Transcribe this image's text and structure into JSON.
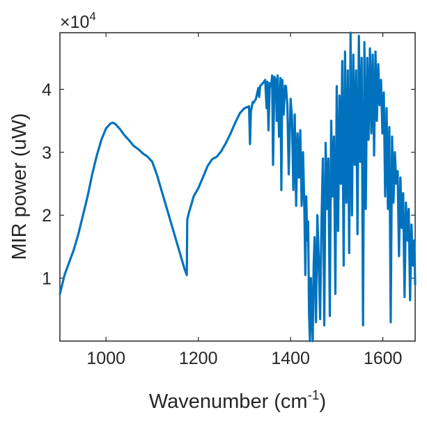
{
  "chart_data": {
    "type": "line",
    "title": "",
    "xlabel": "Wavenumber",
    "xlabel_unit_prefix": "(cm",
    "xlabel_unit_exp": "-1",
    "xlabel_unit_suffix": ")",
    "ylabel": "MIR power (uW)",
    "xlim": [
      900,
      1670
    ],
    "ylim": [
      0,
      49000
    ],
    "x_ticks": [
      1000,
      1200,
      1400,
      1600
    ],
    "x_tick_labels": [
      "1000",
      "1200",
      "1400",
      "1600"
    ],
    "y_ticks": [
      10000,
      20000,
      30000,
      40000
    ],
    "y_tick_labels": [
      "1",
      "2",
      "3",
      "4"
    ],
    "y_multiplier_sign": "×10",
    "y_multiplier_exp": "4",
    "series_color": "#0072BD",
    "series": [
      {
        "name": "MIR power",
        "x": [
          900,
          910,
          920,
          930,
          940,
          950,
          960,
          970,
          980,
          990,
          1000,
          1010,
          1015,
          1020,
          1030,
          1040,
          1050,
          1060,
          1070,
          1080,
          1090,
          1100,
          1110,
          1120,
          1130,
          1140,
          1150,
          1160,
          1170,
          1175,
          1176,
          1180,
          1190,
          1200,
          1210,
          1220,
          1230,
          1240,
          1250,
          1260,
          1270,
          1280,
          1290,
          1300,
          1310,
          1312,
          1314,
          1318,
          1320,
          1325,
          1330,
          1332,
          1334,
          1340,
          1345,
          1348,
          1350,
          1352,
          1355,
          1358,
          1360,
          1362,
          1365,
          1368,
          1370,
          1372,
          1375,
          1378,
          1380,
          1382,
          1385,
          1388,
          1390,
          1393,
          1396,
          1400,
          1403,
          1406,
          1409,
          1412,
          1415,
          1418,
          1421,
          1424,
          1427,
          1430,
          1432,
          1434,
          1436,
          1438,
          1440,
          1442,
          1444,
          1446,
          1448,
          1450,
          1452,
          1455,
          1458,
          1461,
          1464,
          1467,
          1470,
          1473,
          1476,
          1479,
          1482,
          1485,
          1488,
          1491,
          1494,
          1497,
          1500,
          1503,
          1506,
          1509,
          1512,
          1515,
          1518,
          1521,
          1524,
          1527,
          1530,
          1533,
          1536,
          1539,
          1542,
          1545,
          1548,
          1551,
          1554,
          1557,
          1560,
          1563,
          1566,
          1569,
          1572,
          1575,
          1578,
          1581,
          1584,
          1587,
          1590,
          1593,
          1596,
          1599,
          1602,
          1605,
          1608,
          1611,
          1614,
          1617,
          1620,
          1623,
          1626,
          1629,
          1632,
          1635,
          1638,
          1641,
          1644,
          1647,
          1650,
          1653,
          1656,
          1659,
          1662,
          1665,
          1668,
          1670
        ],
        "y": [
          7500,
          10500,
          12500,
          14500,
          17000,
          20000,
          23000,
          26500,
          29500,
          32000,
          33800,
          34600,
          34700,
          34500,
          33700,
          32700,
          31900,
          31000,
          30500,
          29800,
          29300,
          28500,
          26500,
          24000,
          21500,
          19000,
          16500,
          14000,
          11500,
          10500,
          19300,
          20500,
          23000,
          24300,
          26000,
          27800,
          28900,
          29300,
          30200,
          31500,
          33000,
          34700,
          36200,
          37000,
          37300,
          31300,
          36500,
          38000,
          37900,
          38500,
          40200,
          38800,
          40500,
          41000,
          41500,
          37000,
          41200,
          33500,
          41000,
          40500,
          42200,
          28000,
          42000,
          41500,
          35000,
          42200,
          32500,
          41800,
          24000,
          41500,
          36000,
          40600,
          40500,
          37500,
          26500,
          38500,
          35500,
          24000,
          36000,
          21500,
          33000,
          26000,
          33500,
          21500,
          30000,
          20500,
          10500,
          23000,
          16000,
          19000,
          4500,
          0,
          10000,
          4500,
          0,
          12000,
          16500,
          3000,
          20000,
          13000,
          3500,
          19000,
          29000,
          2500,
          31500,
          21000,
          29000,
          4000,
          35000,
          23000,
          32500,
          7500,
          40500,
          17500,
          39000,
          25000,
          44500,
          12000,
          46000,
          22000,
          43000,
          14000,
          49000,
          20000,
          45500,
          28000,
          43000,
          17000,
          48500,
          28500,
          45000,
          2500,
          47500,
          21000,
          45000,
          32000,
          46500,
          33000,
          45500,
          29500,
          46000,
          35000,
          44000,
          37500,
          41500,
          33000,
          39500,
          23000,
          37000,
          21000,
          34000,
          3000,
          32500,
          22000,
          30000,
          25000,
          27000,
          13500,
          26000,
          18000,
          23500,
          7000,
          22000,
          16000,
          21000,
          6500,
          18500,
          12000,
          16000,
          9000
        ]
      }
    ]
  }
}
